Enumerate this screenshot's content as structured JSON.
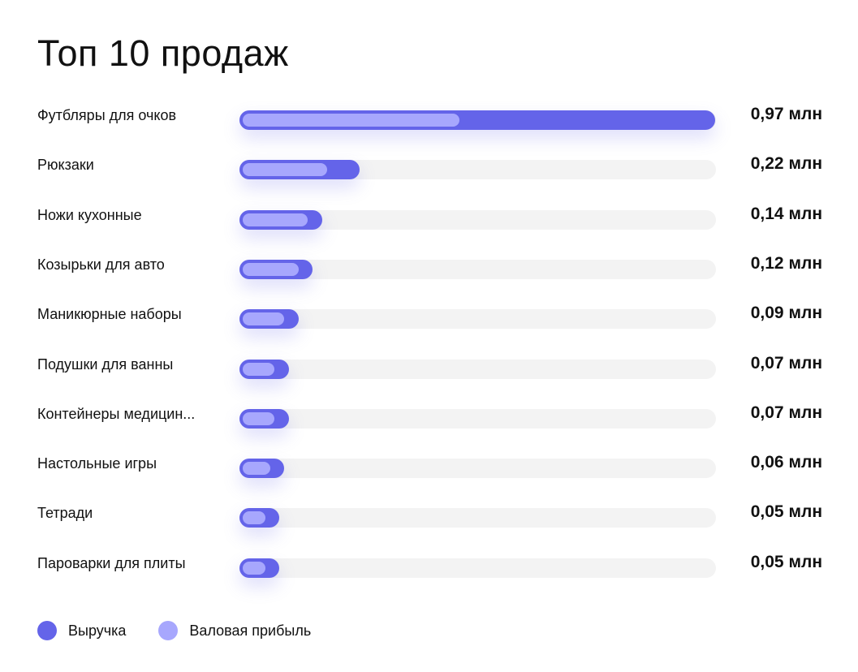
{
  "chart_data": {
    "type": "bar",
    "orientation": "horizontal",
    "title": "Топ 10 продаж",
    "unit": "млн",
    "categories": [
      "Футбляры для очков",
      "Рюкзаки",
      "Ножи кухонные",
      "Козырьки для авто",
      "Маникюрные наборы",
      "Подушки для ванны",
      "Контейнеры медицин...",
      "Настольные игры",
      "Тетради",
      "Пароварки для плиты"
    ],
    "value_labels": [
      "0,97 млн",
      "0,22 млн",
      "0,14 млн",
      "0,12 млн",
      "0,09 млн",
      "0,07 млн",
      "0,07 млн",
      "0,06 млн",
      "0,05 млн",
      "0,05 млн"
    ],
    "series": [
      {
        "name": "Выручка",
        "color": "#6464e9",
        "values": [
          0.97,
          0.22,
          0.14,
          0.12,
          0.09,
          0.07,
          0.07,
          0.06,
          0.05,
          0.05
        ]
      },
      {
        "name": "Валовая прибыль",
        "color": "#a7a7fd",
        "values": [
          0.43,
          0.15,
          0.11,
          0.09,
          0.06,
          0.04,
          0.04,
          0.03,
          0.02,
          0.02
        ]
      }
    ],
    "xlim": [
      0,
      0.97
    ],
    "grid": false,
    "legend_position": "bottom-left"
  }
}
